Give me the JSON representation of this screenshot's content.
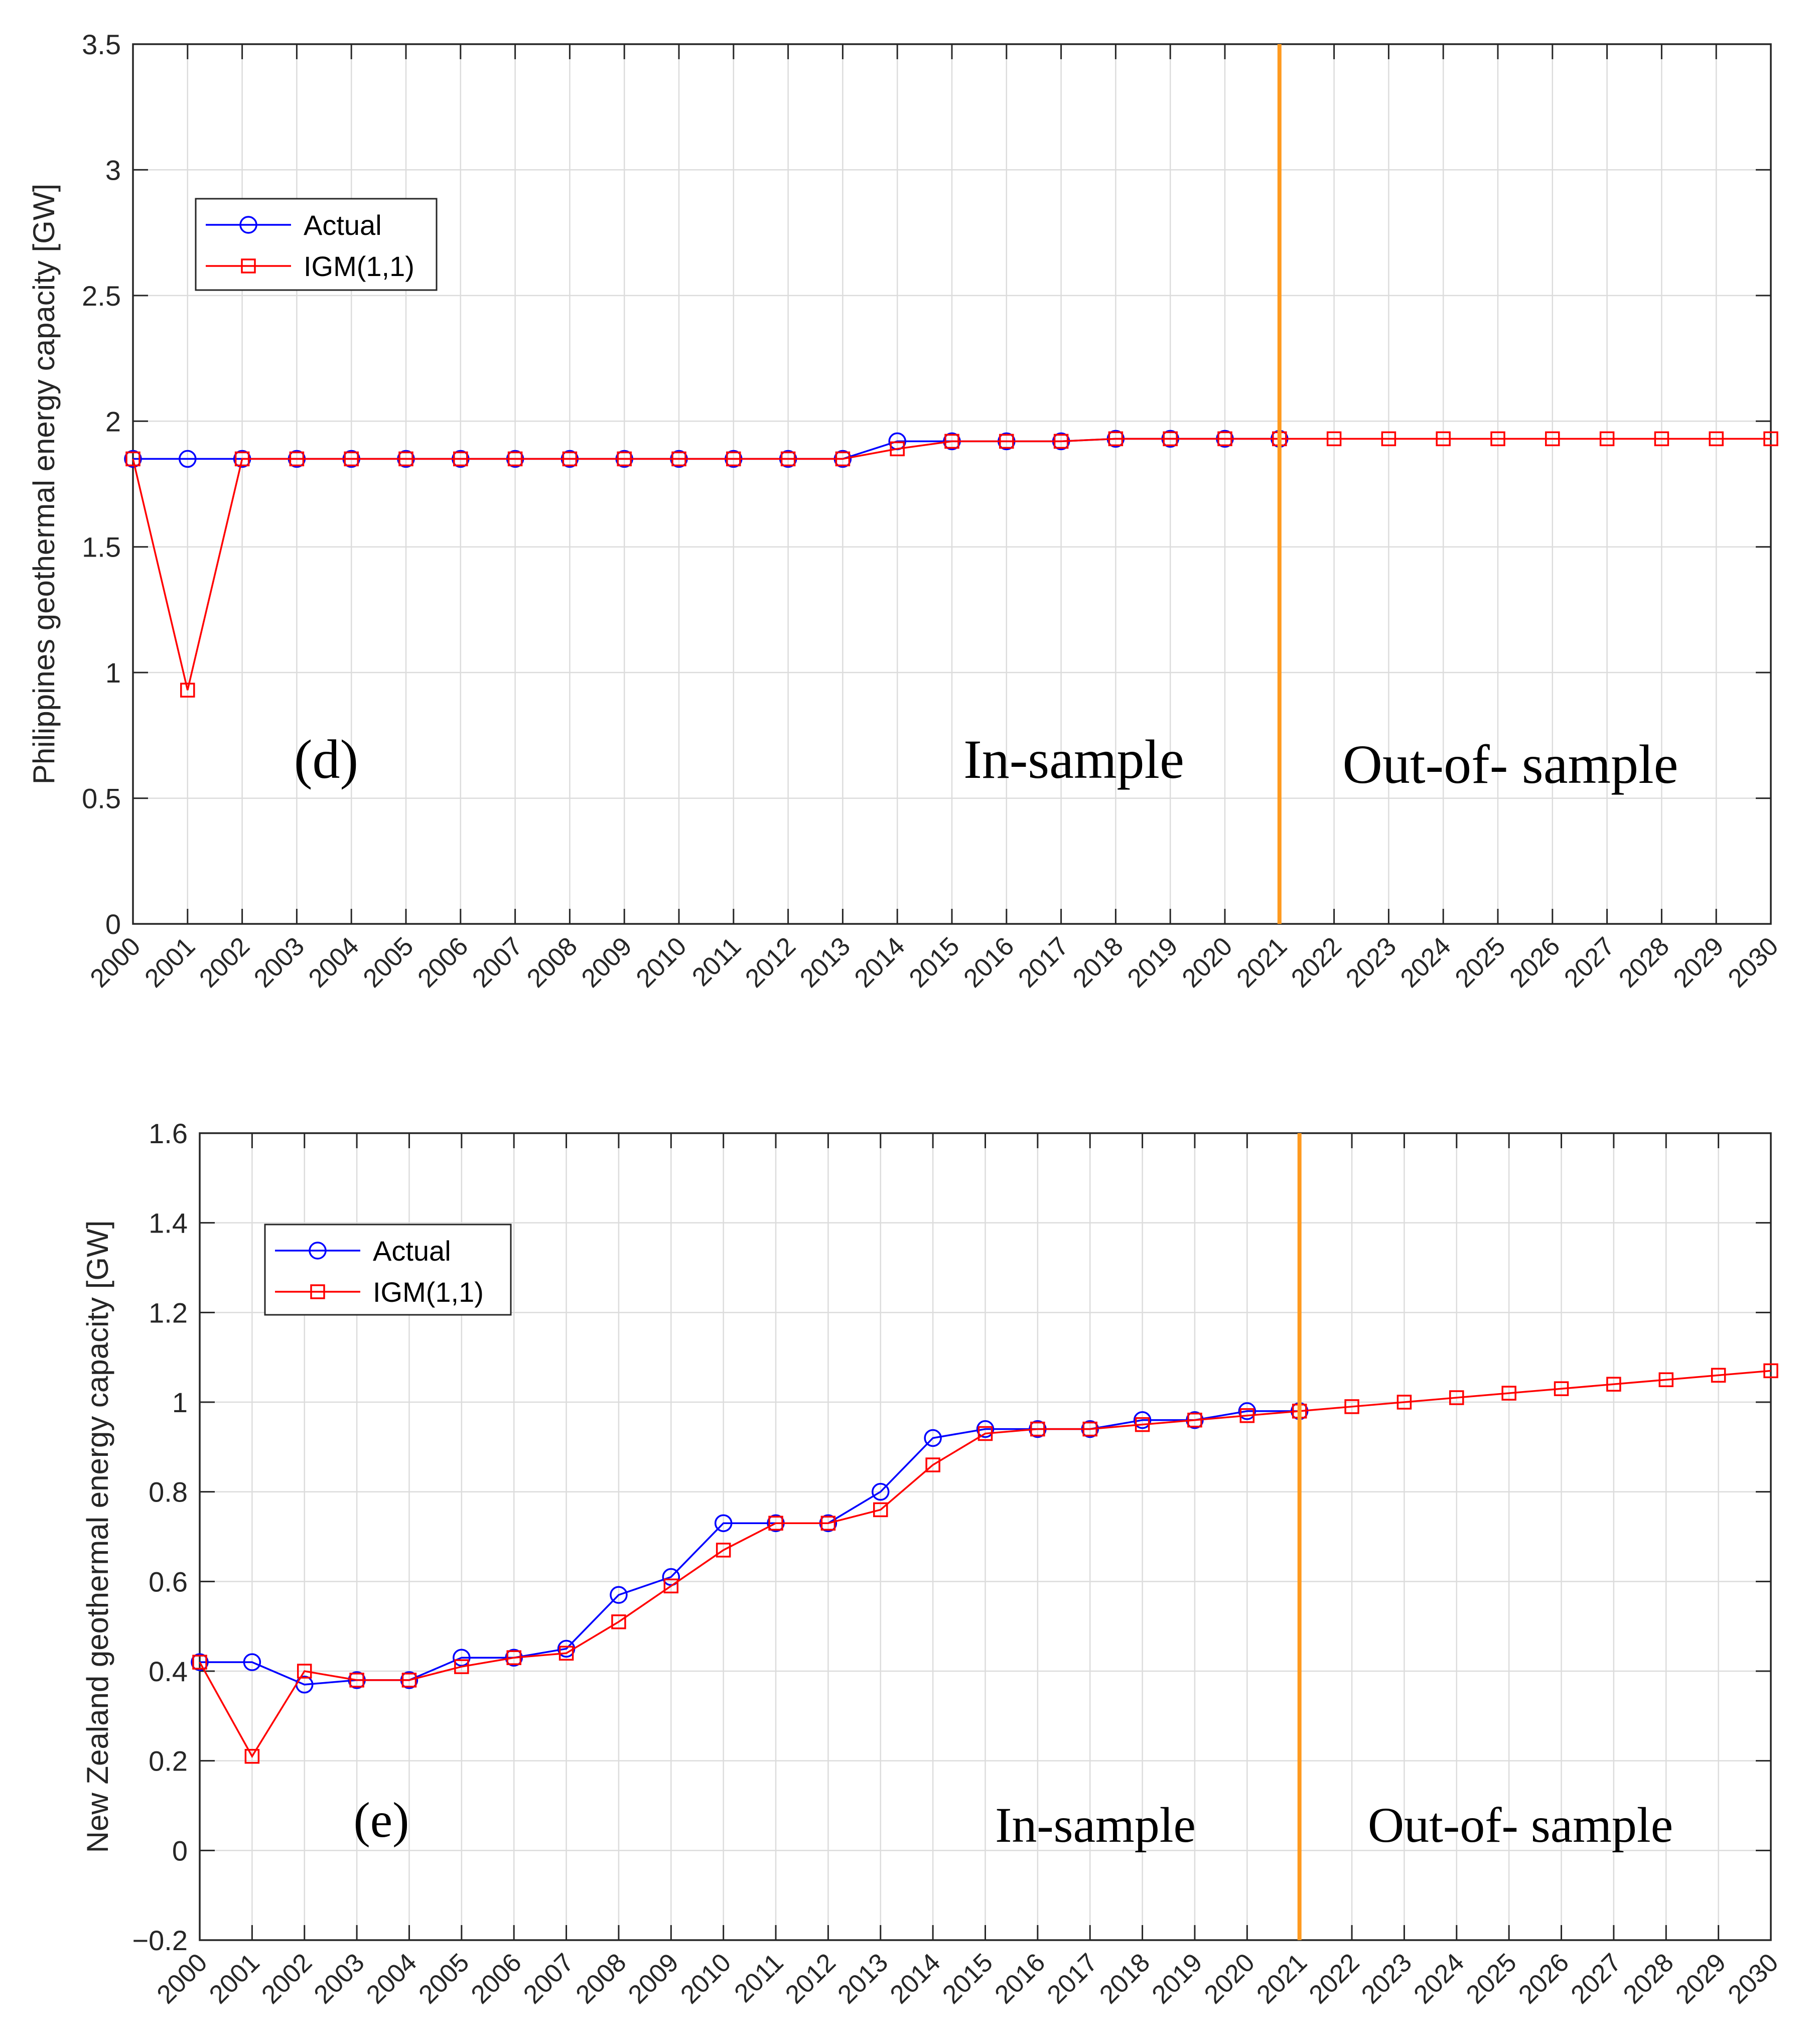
{
  "chart_data": [
    {
      "id": "d",
      "type": "line",
      "panel_label": "(d)",
      "ylabel": "Philippines geothermal energy capacity [GW]",
      "xlabel": "",
      "ylim": [
        0,
        3.5
      ],
      "yticks": [
        0,
        0.5,
        1,
        1.5,
        2,
        2.5,
        3,
        3.5
      ],
      "ytick_labels": [
        "0",
        "0.5",
        "1",
        "1.5",
        "2",
        "2.5",
        "3",
        "3.5"
      ],
      "xlim": [
        2000,
        2030
      ],
      "x": [
        2000,
        2001,
        2002,
        2003,
        2004,
        2005,
        2006,
        2007,
        2008,
        2009,
        2010,
        2011,
        2012,
        2013,
        2014,
        2015,
        2016,
        2017,
        2018,
        2019,
        2020,
        2021,
        2022,
        2023,
        2024,
        2025,
        2026,
        2027,
        2028,
        2029,
        2030
      ],
      "xtick_labels": [
        "2000",
        "2001",
        "2002",
        "2003",
        "2004",
        "2005",
        "2006",
        "2007",
        "2008",
        "2009",
        "2010",
        "2011",
        "2012",
        "2013",
        "2014",
        "2015",
        "2016",
        "2017",
        "2018",
        "2019",
        "2020",
        "2021",
        "2022",
        "2023",
        "2024",
        "2025",
        "2026",
        "2027",
        "2028",
        "2029",
        "2030"
      ],
      "grid": true,
      "legend_position": "upper-left",
      "split_year": 2021,
      "split_color": "#FF9A1F",
      "region_labels": {
        "in_sample": "In-sample",
        "out_of_sample": "Out-of- sample"
      },
      "series": [
        {
          "name": "Actual",
          "color": "#0000FF",
          "marker": "circle",
          "x": [
            2000,
            2001,
            2002,
            2003,
            2004,
            2005,
            2006,
            2007,
            2008,
            2009,
            2010,
            2011,
            2012,
            2013,
            2014,
            2015,
            2016,
            2017,
            2018,
            2019,
            2020,
            2021
          ],
          "values": [
            1.85,
            1.85,
            1.85,
            1.85,
            1.85,
            1.85,
            1.85,
            1.85,
            1.85,
            1.85,
            1.85,
            1.85,
            1.85,
            1.85,
            1.92,
            1.92,
            1.92,
            1.92,
            1.93,
            1.93,
            1.93,
            1.93
          ]
        },
        {
          "name": "IGM(1,1)",
          "color": "#FF0000",
          "marker": "square",
          "x": [
            2000,
            2001,
            2002,
            2003,
            2004,
            2005,
            2006,
            2007,
            2008,
            2009,
            2010,
            2011,
            2012,
            2013,
            2014,
            2015,
            2016,
            2017,
            2018,
            2019,
            2020,
            2021,
            2022,
            2023,
            2024,
            2025,
            2026,
            2027,
            2028,
            2029,
            2030
          ],
          "values": [
            1.85,
            0.93,
            1.85,
            1.85,
            1.85,
            1.85,
            1.85,
            1.85,
            1.85,
            1.85,
            1.85,
            1.85,
            1.85,
            1.85,
            1.89,
            1.92,
            1.92,
            1.92,
            1.93,
            1.93,
            1.93,
            1.93,
            1.93,
            1.93,
            1.93,
            1.93,
            1.93,
            1.93,
            1.93,
            1.93,
            1.93
          ]
        }
      ]
    },
    {
      "id": "e",
      "type": "line",
      "panel_label": "(e)",
      "ylabel": "New Zealand geothermal energy capacity [GW]",
      "xlabel": "",
      "ylim": [
        -0.2,
        1.6
      ],
      "yticks": [
        -0.2,
        0,
        0.2,
        0.4,
        0.6,
        0.8,
        1,
        1.2,
        1.4,
        1.6
      ],
      "ytick_labels": [
        "−0.2",
        "0",
        "0.2",
        "0.4",
        "0.6",
        "0.8",
        "1",
        "1.2",
        "1.4",
        "1.6"
      ],
      "xlim": [
        2000,
        2030
      ],
      "x": [
        2000,
        2001,
        2002,
        2003,
        2004,
        2005,
        2006,
        2007,
        2008,
        2009,
        2010,
        2011,
        2012,
        2013,
        2014,
        2015,
        2016,
        2017,
        2018,
        2019,
        2020,
        2021,
        2022,
        2023,
        2024,
        2025,
        2026,
        2027,
        2028,
        2029,
        2030
      ],
      "xtick_labels": [
        "2000",
        "2001",
        "2002",
        "2003",
        "2004",
        "2005",
        "2006",
        "2007",
        "2008",
        "2009",
        "2010",
        "2011",
        "2012",
        "2013",
        "2014",
        "2015",
        "2016",
        "2017",
        "2018",
        "2019",
        "2020",
        "2021",
        "2022",
        "2023",
        "2024",
        "2025",
        "2026",
        "2027",
        "2028",
        "2029",
        "2030"
      ],
      "grid": true,
      "legend_position": "upper-left",
      "split_year": 2021,
      "split_color": "#FF9A1F",
      "region_labels": {
        "in_sample": "In-sample",
        "out_of_sample": "Out-of- sample"
      },
      "series": [
        {
          "name": "Actual",
          "color": "#0000FF",
          "marker": "circle",
          "x": [
            2000,
            2001,
            2002,
            2003,
            2004,
            2005,
            2006,
            2007,
            2008,
            2009,
            2010,
            2011,
            2012,
            2013,
            2014,
            2015,
            2016,
            2017,
            2018,
            2019,
            2020,
            2021
          ],
          "values": [
            0.42,
            0.42,
            0.37,
            0.38,
            0.38,
            0.43,
            0.43,
            0.45,
            0.57,
            0.61,
            0.73,
            0.73,
            0.73,
            0.8,
            0.92,
            0.94,
            0.94,
            0.94,
            0.96,
            0.96,
            0.98,
            0.98
          ]
        },
        {
          "name": "IGM(1,1)",
          "color": "#FF0000",
          "marker": "square",
          "x": [
            2000,
            2001,
            2002,
            2003,
            2004,
            2005,
            2006,
            2007,
            2008,
            2009,
            2010,
            2011,
            2012,
            2013,
            2014,
            2015,
            2016,
            2017,
            2018,
            2019,
            2020,
            2021,
            2022,
            2023,
            2024,
            2025,
            2026,
            2027,
            2028,
            2029,
            2030
          ],
          "values": [
            0.42,
            0.21,
            0.4,
            0.38,
            0.38,
            0.41,
            0.43,
            0.44,
            0.51,
            0.59,
            0.67,
            0.73,
            0.73,
            0.76,
            0.86,
            0.93,
            0.94,
            0.94,
            0.95,
            0.96,
            0.97,
            0.98,
            0.99,
            1.0,
            1.01,
            1.02,
            1.03,
            1.04,
            1.05,
            1.06,
            1.07
          ]
        }
      ]
    }
  ]
}
